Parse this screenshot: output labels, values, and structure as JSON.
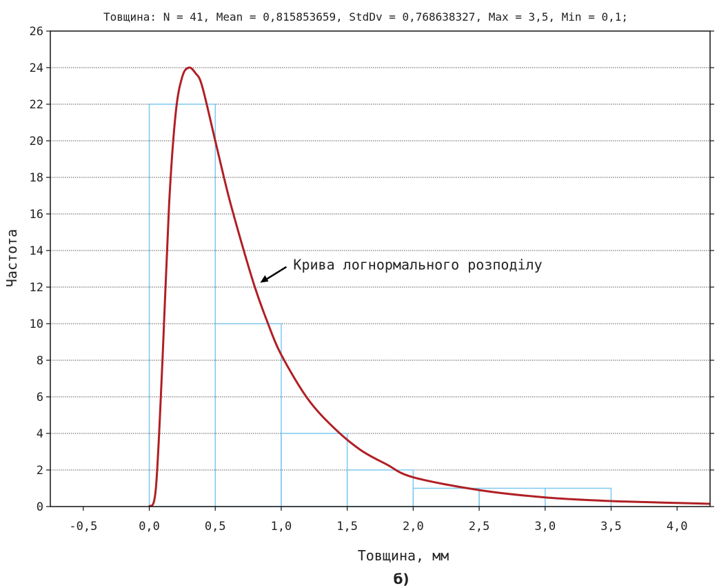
{
  "chart_data": {
    "type": "bar",
    "title": "Товщина: N = 41, Mean = 0,815853659, StdDv = 0,768638327, Max = 3,5, Min = 0,1;",
    "xlabel": "Товщина, мм",
    "ylabel": "Частота",
    "panel_label": "б)",
    "xlim": [
      -0.75,
      4.25
    ],
    "ylim": [
      0,
      26
    ],
    "grid": true,
    "x_ticks": [
      -0.5,
      0.0,
      0.5,
      1.0,
      1.5,
      2.0,
      2.5,
      3.0,
      3.5,
      4.0
    ],
    "x_tick_labels": [
      "-0,5",
      "0,0",
      "0,5",
      "1,0",
      "1,5",
      "2,0",
      "2,5",
      "3,0",
      "3,5",
      "4,0"
    ],
    "y_ticks": [
      0,
      2,
      4,
      6,
      8,
      10,
      12,
      14,
      16,
      18,
      20,
      22,
      24,
      26
    ],
    "y_tick_labels": [
      "0",
      "2",
      "4",
      "6",
      "8",
      "10",
      "12",
      "14",
      "16",
      "18",
      "20",
      "22",
      "24",
      "26"
    ],
    "bins": [
      {
        "x0": 0.0,
        "x1": 0.5,
        "value": 22
      },
      {
        "x0": 0.5,
        "x1": 1.0,
        "value": 10
      },
      {
        "x0": 1.0,
        "x1": 1.5,
        "value": 4
      },
      {
        "x0": 1.5,
        "x1": 2.0,
        "value": 2
      },
      {
        "x0": 2.0,
        "x1": 2.5,
        "value": 1
      },
      {
        "x0": 2.5,
        "x1": 3.0,
        "value": 1
      },
      {
        "x0": 3.0,
        "x1": 3.5,
        "value": 1
      }
    ],
    "curve": {
      "name": "Крива логнормального розподілу",
      "type": "lognormal",
      "x": [
        0.0,
        0.05,
        0.1,
        0.15,
        0.2,
        0.25,
        0.3,
        0.35,
        0.4,
        0.5,
        0.6,
        0.7,
        0.8,
        0.9,
        1.0,
        1.2,
        1.4,
        1.6,
        1.8,
        2.0,
        2.5,
        3.0,
        3.5,
        4.0,
        4.25
      ],
      "y": [
        0.0,
        1.0,
        8.0,
        16.5,
        21.5,
        23.5,
        24.0,
        23.7,
        23.0,
        20.0,
        17.0,
        14.4,
        12.0,
        10.0,
        8.3,
        5.9,
        4.3,
        3.1,
        2.3,
        1.6,
        0.9,
        0.5,
        0.3,
        0.2,
        0.15
      ],
      "color": "#b01f24"
    },
    "colors": {
      "bars": "#7ec8ee",
      "curve": "#b01f24",
      "grid": "#555555"
    },
    "annotation": {
      "text": "Крива логнормального розподілу",
      "x": 0.83,
      "y": 12.2
    }
  }
}
